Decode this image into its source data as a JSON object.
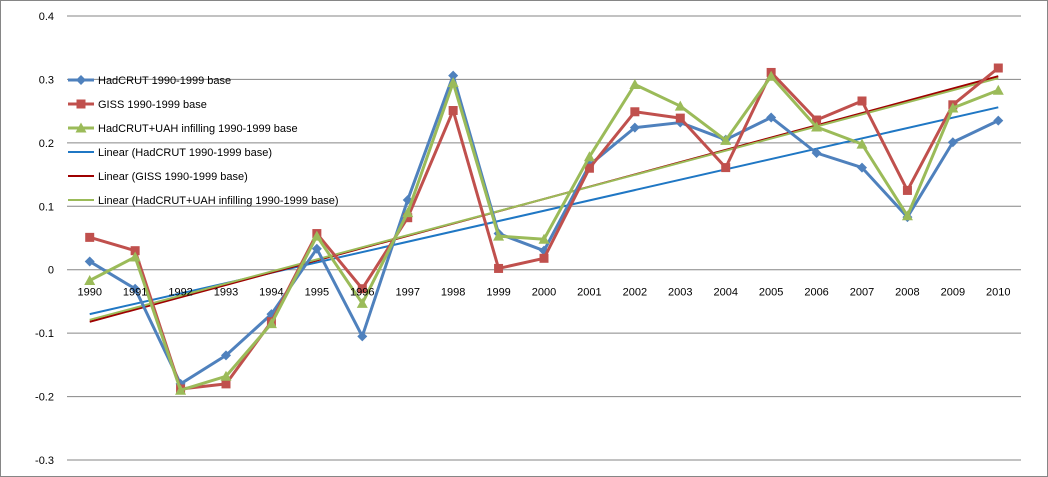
{
  "chart_data": {
    "type": "line",
    "title": "",
    "xlabel": "",
    "ylabel": "",
    "ylim": [
      -0.3,
      0.4
    ],
    "y_ticks": [
      "0.4",
      "0.3",
      "0.2",
      "0.1",
      "0",
      "-0.1",
      "-0.2",
      "-0.3"
    ],
    "y_tick_values": [
      0.4,
      0.3,
      0.2,
      0.1,
      0,
      -0.1,
      -0.2,
      -0.3
    ],
    "grid": "horizontal",
    "legend_position": "upper-left",
    "categories": [
      "1990",
      "1991",
      "1992",
      "1993",
      "1994",
      "1995",
      "1996",
      "1997",
      "1998",
      "1999",
      "2000",
      "2001",
      "2002",
      "2003",
      "2004",
      "2005",
      "2006",
      "2007",
      "2008",
      "2009",
      "2010"
    ],
    "series": [
      {
        "name": "HadCRUT 1990-1999 base",
        "color": "#4F81BD",
        "marker": "diamond",
        "values": [
          0.013,
          -0.03,
          -0.18,
          -0.135,
          -0.07,
          0.033,
          -0.105,
          0.11,
          0.306,
          0.057,
          0.03,
          0.165,
          0.224,
          0.232,
          0.205,
          0.24,
          0.184,
          0.161,
          0.083,
          0.201,
          0.235
        ]
      },
      {
        "name": "GISS 1990-1999 base",
        "color": "#C0504D",
        "marker": "square",
        "values": [
          0.051,
          0.03,
          -0.188,
          -0.18,
          -0.082,
          0.057,
          -0.03,
          0.082,
          0.251,
          0.002,
          0.018,
          0.16,
          0.249,
          0.239,
          0.161,
          0.311,
          0.236,
          0.266,
          0.125,
          0.26,
          0.318
        ]
      },
      {
        "name": "HadCRUT+UAH infilling 1990-1999 base",
        "color": "#9BBB59",
        "marker": "triangle",
        "values": [
          -0.017,
          0.02,
          -0.19,
          -0.168,
          -0.085,
          0.053,
          -0.053,
          0.09,
          0.295,
          0.053,
          0.048,
          0.178,
          0.292,
          0.258,
          0.204,
          0.305,
          0.225,
          0.198,
          0.085,
          0.255,
          0.283
        ]
      }
    ],
    "trendlines": [
      {
        "name": "Linear (HadCRUT  1990-1999 base)",
        "color": "#1F77C4",
        "start": -0.07,
        "end": 0.256
      },
      {
        "name": "Linear (GISS 1990-1999 base)",
        "color": "#9E0000",
        "start": -0.082,
        "end": 0.305
      },
      {
        "name": "Linear (HadCRUT+UAH  infilling 1990-1999 base)",
        "color": "#9BBB59",
        "start": -0.079,
        "end": 0.302
      }
    ]
  }
}
